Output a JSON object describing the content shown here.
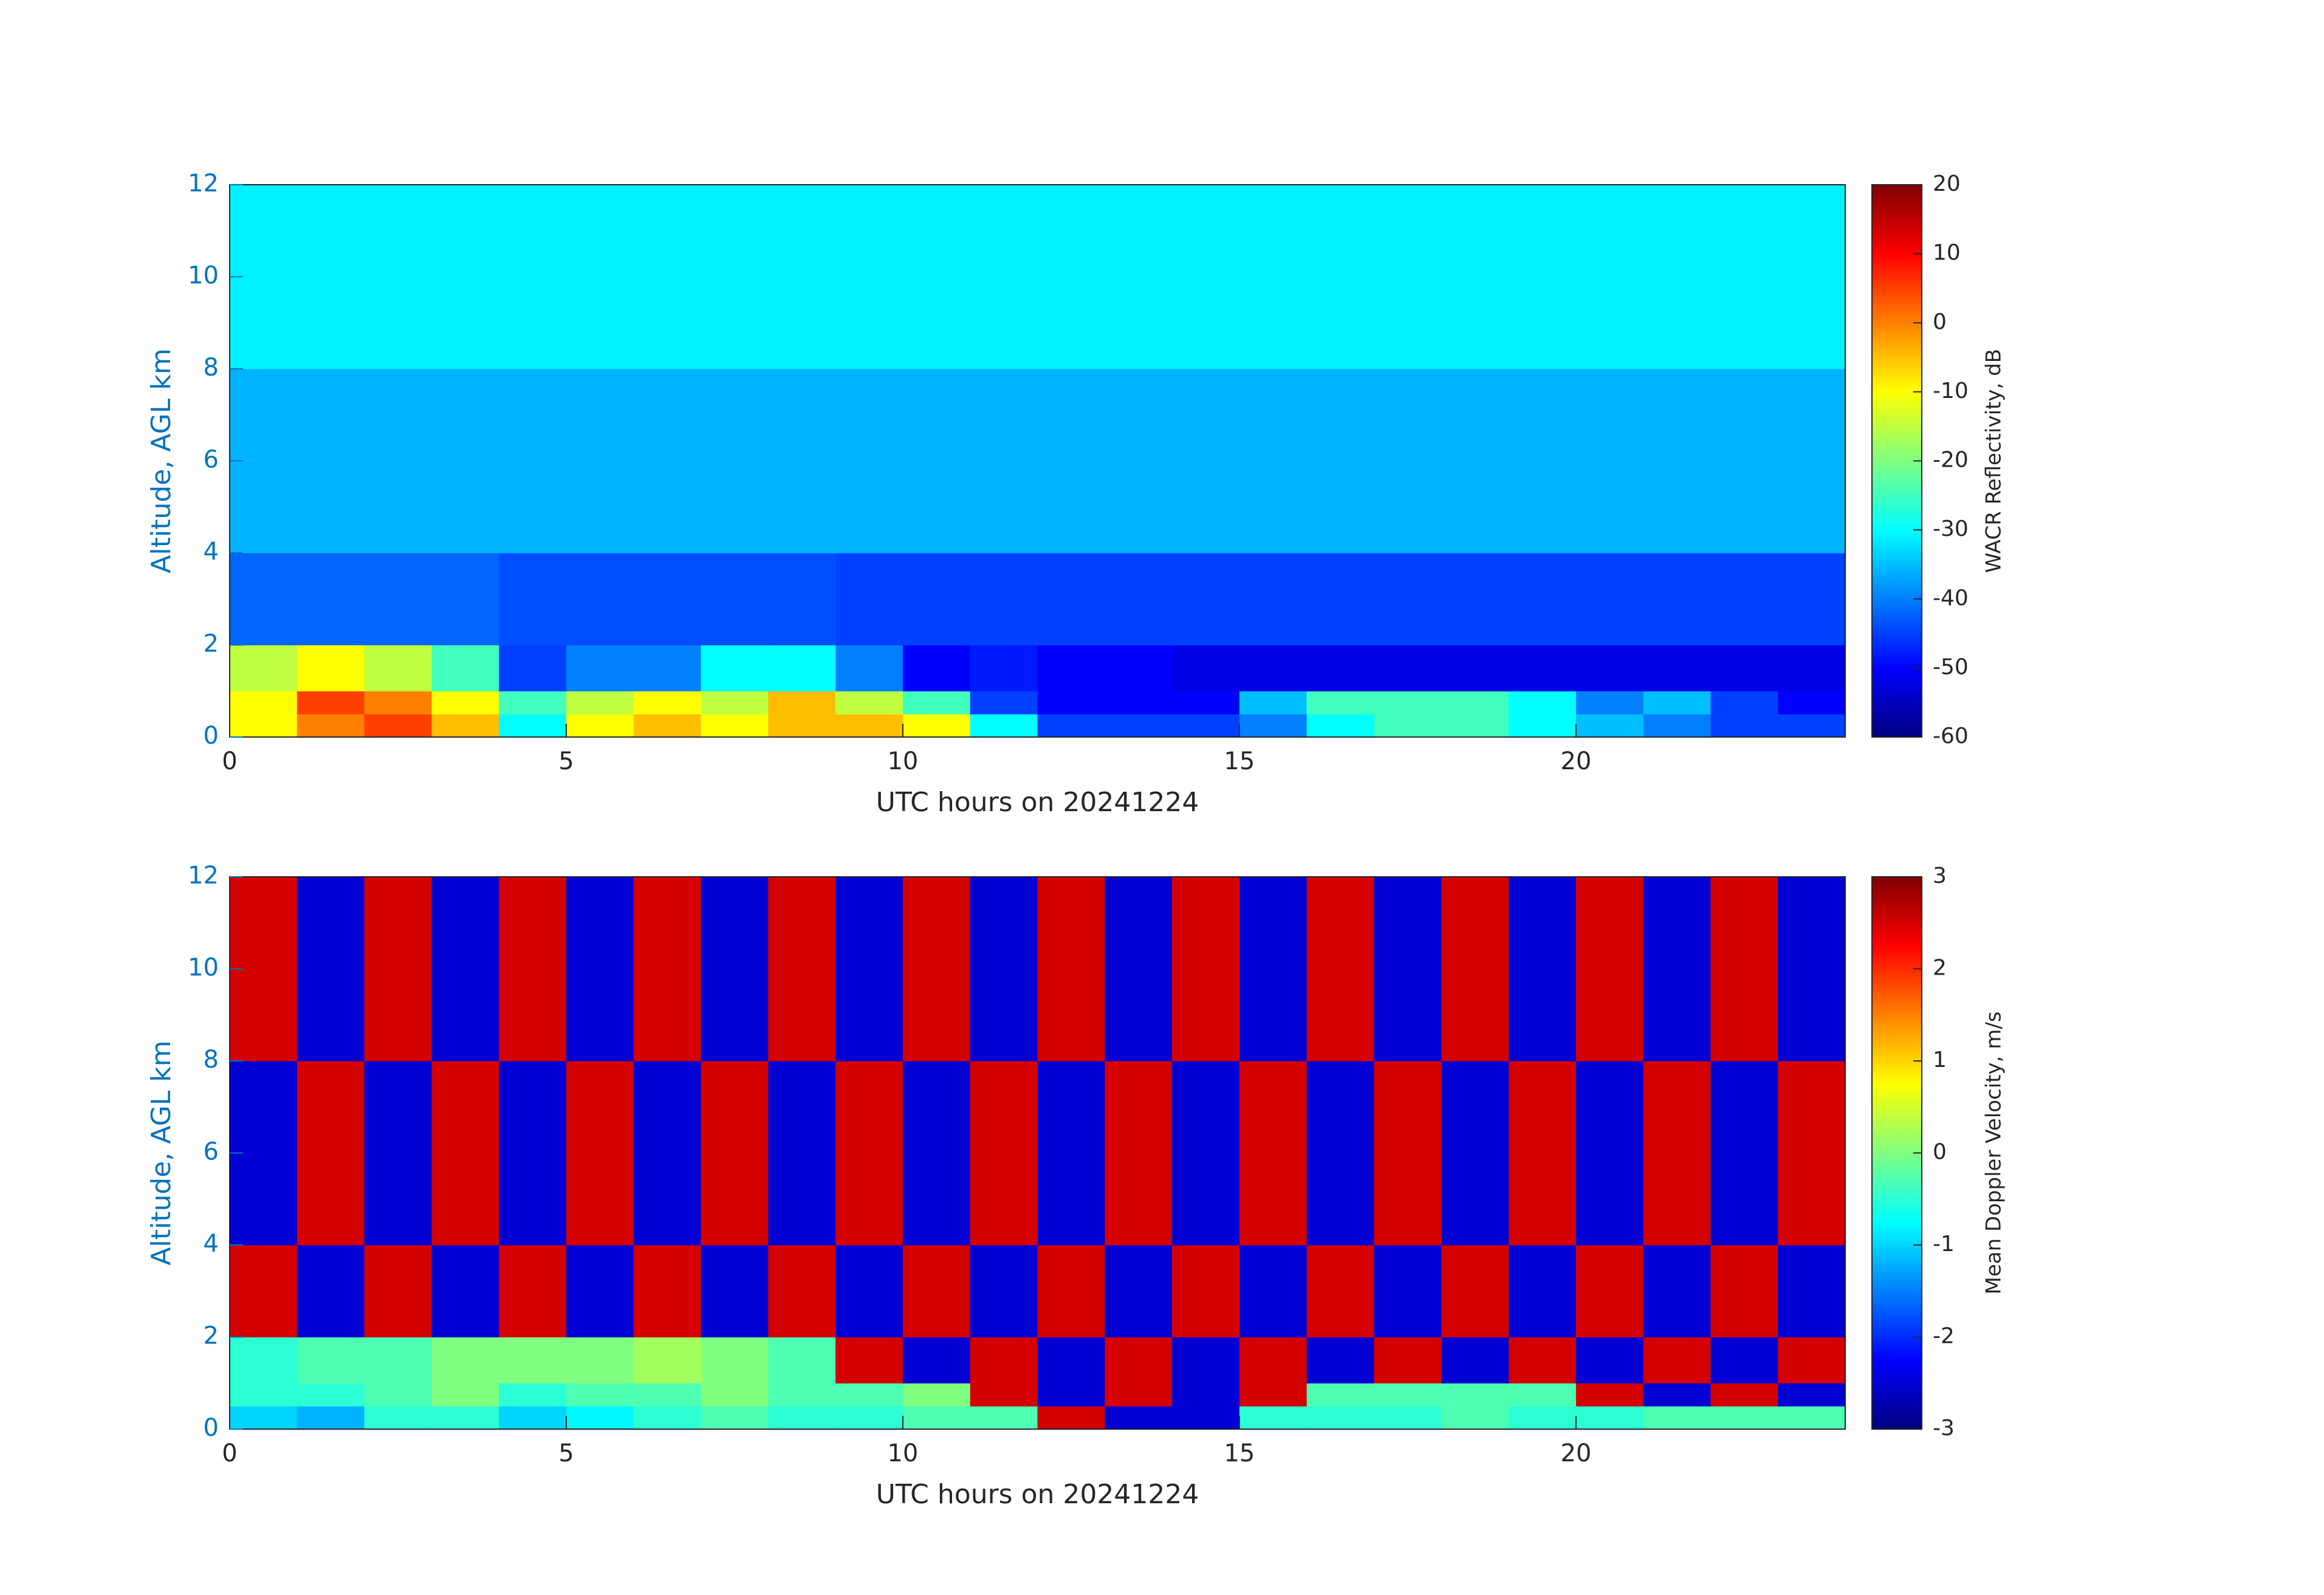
{
  "chart_data": [
    {
      "type": "heatmap",
      "colormap": "jet",
      "xlabel": "UTC hours on 20241224",
      "ylabel": "Altitude, AGL km",
      "xlim": [
        0,
        24
      ],
      "xticks": [
        0,
        5,
        10,
        15,
        20
      ],
      "ylim": [
        0,
        12
      ],
      "yticks": [
        0,
        2,
        4,
        6,
        8,
        10,
        12
      ],
      "colorbar": {
        "label": "WACR Reflectivity, dB",
        "lim": [
          -60,
          20
        ],
        "ticks": [
          -60,
          -50,
          -40,
          -30,
          -20,
          -10,
          0,
          10,
          20
        ]
      },
      "xbins": [
        0,
        1,
        2,
        3,
        4,
        5,
        6,
        7,
        8,
        9,
        10,
        11,
        12,
        13,
        14,
        15,
        16,
        17,
        18,
        19,
        20,
        21,
        22,
        23,
        24
      ],
      "ybins": [
        0,
        0.5,
        1,
        2,
        4,
        8,
        12
      ],
      "values": [
        [
          -10,
          0,
          5,
          -5,
          -30,
          -10,
          -5,
          -10,
          -5,
          -5,
          -10,
          -30,
          -45,
          -45,
          -45,
          -40,
          -30,
          -25,
          -25,
          -30,
          -35,
          -40,
          -45,
          -45
        ],
        [
          -10,
          5,
          0,
          -10,
          -25,
          -15,
          -10,
          -15,
          -5,
          -15,
          -25,
          -45,
          -50,
          -50,
          -50,
          -35,
          -25,
          -25,
          -25,
          -30,
          -40,
          -35,
          -45,
          -50
        ],
        [
          -15,
          -10,
          -15,
          -25,
          -45,
          -40,
          -40,
          -30,
          -30,
          -40,
          -50,
          -48,
          -50,
          -50,
          -52,
          -52,
          -52,
          -52,
          -52,
          -52,
          -52,
          -52,
          -52,
          -52
        ],
        [
          -42,
          -42,
          -42,
          -42,
          -44,
          -44,
          -44,
          -44,
          -44,
          -45,
          -45,
          -45,
          -45,
          -45,
          -45,
          -45,
          -45,
          -45,
          -45,
          -45,
          -45,
          -45,
          -45,
          -45
        ],
        [
          -36,
          -36,
          -36,
          -36,
          -36,
          -36,
          -36,
          -36,
          -36,
          -36,
          -36,
          -36,
          -36,
          -36,
          -36,
          -36,
          -36,
          -36,
          -36,
          -36,
          -36,
          -36,
          -36,
          -36
        ],
        [
          -31,
          -31,
          -31,
          -31,
          -31,
          -31,
          -31,
          -31,
          -31,
          -31,
          -31,
          -31,
          -31,
          -31,
          -31,
          -31,
          -31,
          -31,
          -31,
          -31,
          -31,
          -31,
          -31,
          -31
        ]
      ]
    },
    {
      "type": "heatmap",
      "colormap": "jet",
      "xlabel": "UTC hours on 20241224",
      "ylabel": "Altitude, AGL km",
      "xlim": [
        0,
        24
      ],
      "xticks": [
        0,
        5,
        10,
        15,
        20
      ],
      "ylim": [
        0,
        12
      ],
      "yticks": [
        0,
        2,
        4,
        6,
        8,
        10,
        12
      ],
      "colorbar": {
        "label": "Mean Doppler Velocity, m/s",
        "lim": [
          -3,
          3
        ],
        "ticks": [
          -3,
          -2,
          -1,
          0,
          1,
          2,
          3
        ]
      },
      "xbins": [
        0,
        1,
        2,
        3,
        4,
        5,
        6,
        7,
        8,
        9,
        10,
        11,
        12,
        13,
        14,
        15,
        16,
        17,
        18,
        19,
        20,
        21,
        22,
        23,
        24
      ],
      "ybins": [
        0,
        0.5,
        1,
        2,
        4,
        8,
        12
      ],
      "values": [
        [
          -1,
          -1.2,
          -0.5,
          -0.5,
          -1,
          -0.8,
          -0.5,
          -0.3,
          -0.5,
          -0.5,
          -0.3,
          -0.3,
          2.5,
          -2.5,
          -2.5,
          -0.5,
          -0.5,
          -0.5,
          -0.3,
          -0.5,
          -0.5,
          -0.3,
          -0.3,
          -0.3
        ],
        [
          -0.5,
          -0.5,
          -0.3,
          0,
          -0.5,
          -0.3,
          -0.3,
          0,
          -0.3,
          -0.3,
          0,
          2.5,
          -2.5,
          2.5,
          -2.5,
          2.5,
          -0.3,
          -0.3,
          -0.3,
          -0.3,
          2.5,
          -2.5,
          2.5,
          -2.5
        ],
        [
          -0.5,
          -0.3,
          -0.3,
          0,
          0,
          0,
          0.2,
          0,
          -0.3,
          2.5,
          -2.5,
          2.5,
          -2.5,
          2.5,
          -2.5,
          2.5,
          -2.5,
          2.5,
          -2.5,
          2.5,
          -2.5,
          2.5,
          -2.5,
          2.5
        ],
        [
          2.5,
          -2.5,
          2.5,
          -2.5,
          2.5,
          -2.5,
          2.5,
          -2.5,
          2.5,
          -2.5,
          2.5,
          -2.5,
          2.5,
          -2.5,
          2.5,
          -2.5,
          2.5,
          -2.5,
          2.5,
          -2.5,
          2.5,
          -2.5,
          2.5,
          -2.5
        ],
        [
          -2.5,
          2.5,
          -2.5,
          2.5,
          -2.5,
          2.5,
          -2.5,
          2.5,
          -2.5,
          2.5,
          -2.5,
          2.5,
          -2.5,
          2.5,
          -2.5,
          2.5,
          -2.5,
          2.5,
          -2.5,
          2.5,
          -2.5,
          2.5,
          -2.5,
          2.5
        ],
        [
          2.5,
          -2.5,
          2.5,
          -2.5,
          2.5,
          -2.5,
          2.5,
          -2.5,
          2.5,
          -2.5,
          2.5,
          -2.5,
          2.5,
          -2.5,
          2.5,
          -2.5,
          2.5,
          -2.5,
          2.5,
          -2.5,
          2.5,
          -2.5,
          2.5,
          -2.5
        ]
      ]
    }
  ]
}
